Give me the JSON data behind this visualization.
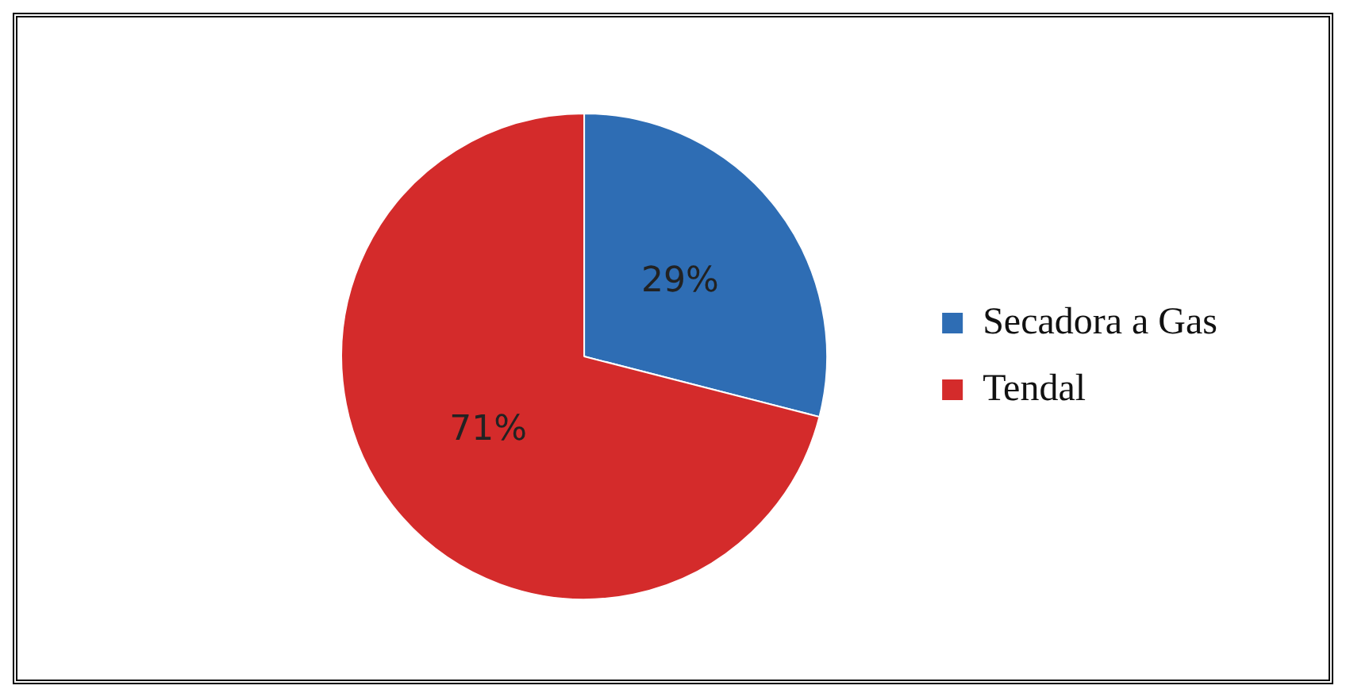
{
  "chart_data": {
    "type": "pie",
    "categories": [
      "Secadora a Gas",
      "Tendal"
    ],
    "values": [
      29,
      71
    ],
    "colors": [
      "#2e6db4",
      "#d42b2b"
    ],
    "value_labels": [
      "29%",
      "71%"
    ],
    "legend": "right"
  }
}
